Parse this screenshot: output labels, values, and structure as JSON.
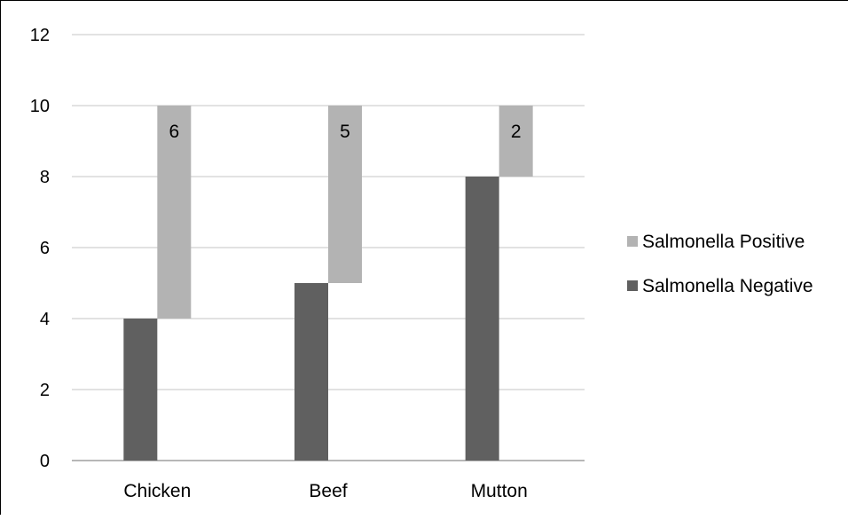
{
  "chart_data": {
    "type": "bar",
    "categories": [
      "Chicken",
      "Beef",
      "Mutton"
    ],
    "series": [
      {
        "name": "Salmonella Negative",
        "values": [
          4,
          5,
          8
        ],
        "color": "#606060"
      },
      {
        "name": "Salmonella Positive",
        "values": [
          6,
          5,
          2
        ],
        "color": "#b3b3b3"
      }
    ],
    "data_labels": [
      "6",
      "5",
      "2"
    ],
    "y_ticks": [
      "0",
      "2",
      "4",
      "6",
      "8",
      "10",
      "12"
    ],
    "ylim": [
      0,
      12
    ],
    "grid": true,
    "legend_position": "right",
    "title": "",
    "xlabel": "",
    "ylabel": ""
  }
}
